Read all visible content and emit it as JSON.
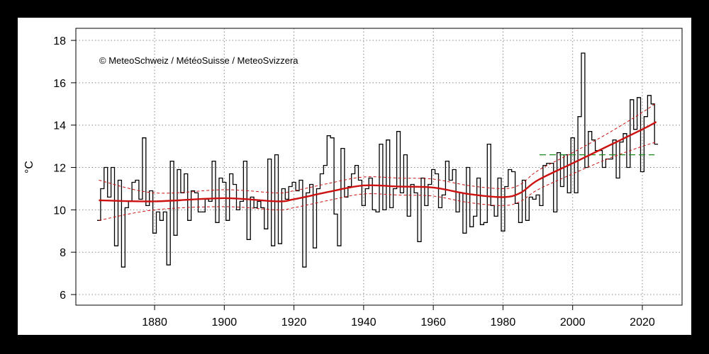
{
  "chart_data": {
    "type": "line",
    "title": "",
    "annotation": "© MeteoSchweiz / MétéoSuisse / MeteoSvizzera",
    "xlabel": "",
    "ylabel": "°C",
    "xlim": [
      1857.4,
      2031.4
    ],
    "ylim": [
      5.5,
      18.57
    ],
    "x_ticks": [
      1880,
      1900,
      1920,
      1940,
      1960,
      1980,
      2000,
      2020
    ],
    "y_ticks": [
      6,
      8,
      10,
      12,
      14,
      16,
      18
    ],
    "grid": true,
    "start_year": 1864,
    "annual_values": [
      9.5,
      11.0,
      12.0,
      10.6,
      12.0,
      8.3,
      11.4,
      7.3,
      10.1,
      10.4,
      11.3,
      11.4,
      10.5,
      13.4,
      10.2,
      10.9,
      8.9,
      9.9,
      9.5,
      9.9,
      7.4,
      12.3,
      8.8,
      11.9,
      10.8,
      11.7,
      9.5,
      10.9,
      10.8,
      9.9,
      9.9,
      10.5,
      10.4,
      12.3,
      9.4,
      11.5,
      11.3,
      9.5,
      11.7,
      11.2,
      10.0,
      10.4,
      12.3,
      8.6,
      10.6,
      10.1,
      10.4,
      10.1,
      9.1,
      12.4,
      8.3,
      12.6,
      8.4,
      11.0,
      10.5,
      11.1,
      11.3,
      10.9,
      11.4,
      7.3,
      10.8,
      11.2,
      8.2,
      11.0,
      11.7,
      12.1,
      13.5,
      13.4,
      9.8,
      8.3,
      12.9,
      10.6,
      11.1,
      11.7,
      12.1,
      11.4,
      10.2,
      11.0,
      11.5,
      10.0,
      9.9,
      13.1,
      10.0,
      13.3,
      10.1,
      11.0,
      13.7,
      10.8,
      12.6,
      9.7,
      11.2,
      10.8,
      8.5,
      11.5,
      10.2,
      11.2,
      11.9,
      11.7,
      10.1,
      10.7,
      12.3,
      11.4,
      11.9,
      9.9,
      10.8,
      8.9,
      12.0,
      9.2,
      9.7,
      11.5,
      9.3,
      9.4,
      13.1,
      10.2,
      9.7,
      11.5,
      9.0,
      11.1,
      11.9,
      11.8,
      10.3,
      9.4,
      11.4,
      9.5,
      10.6,
      10.5,
      10.7,
      10.2,
      12.1,
      12.2,
      12.2,
      9.9,
      12.7,
      11.1,
      12.6,
      10.8,
      13.4,
      10.8,
      14.4,
      17.4,
      12.0,
      13.7,
      13.3,
      12.8,
      12.8,
      12.0,
      12.4,
      12.4,
      13.3,
      11.5,
      13.2,
      13.6,
      12.0,
      15.2,
      13.8,
      15.3,
      11.8,
      14.4,
      15.4,
      15.0,
      13.1
    ],
    "trend": {
      "x": [
        1864,
        1880,
        1900,
        1915,
        1920,
        1930,
        1940,
        1950,
        1960,
        1970,
        1980,
        1985,
        1990,
        2000,
        2010,
        2020,
        2024
      ],
      "y": [
        10.45,
        10.4,
        10.55,
        10.4,
        10.5,
        10.85,
        11.15,
        11.1,
        11.05,
        10.75,
        10.6,
        10.8,
        11.4,
        12.2,
        13.0,
        13.8,
        14.15
      ],
      "lower": [
        9.5,
        10.0,
        10.15,
        10.0,
        10.1,
        10.45,
        10.75,
        10.7,
        10.65,
        10.35,
        10.2,
        10.4,
        10.95,
        11.7,
        12.4,
        13.0,
        13.2
      ],
      "upper": [
        11.4,
        10.8,
        10.95,
        10.8,
        10.9,
        11.25,
        11.55,
        11.5,
        11.45,
        11.15,
        11.0,
        11.2,
        11.85,
        12.7,
        13.6,
        14.6,
        15.05
      ],
      "color": "#cc1111"
    },
    "reference_line": {
      "x": [
        1991,
        2024
      ],
      "y": 12.6,
      "color": "#1a8a1a"
    },
    "series_color": "#000000"
  }
}
